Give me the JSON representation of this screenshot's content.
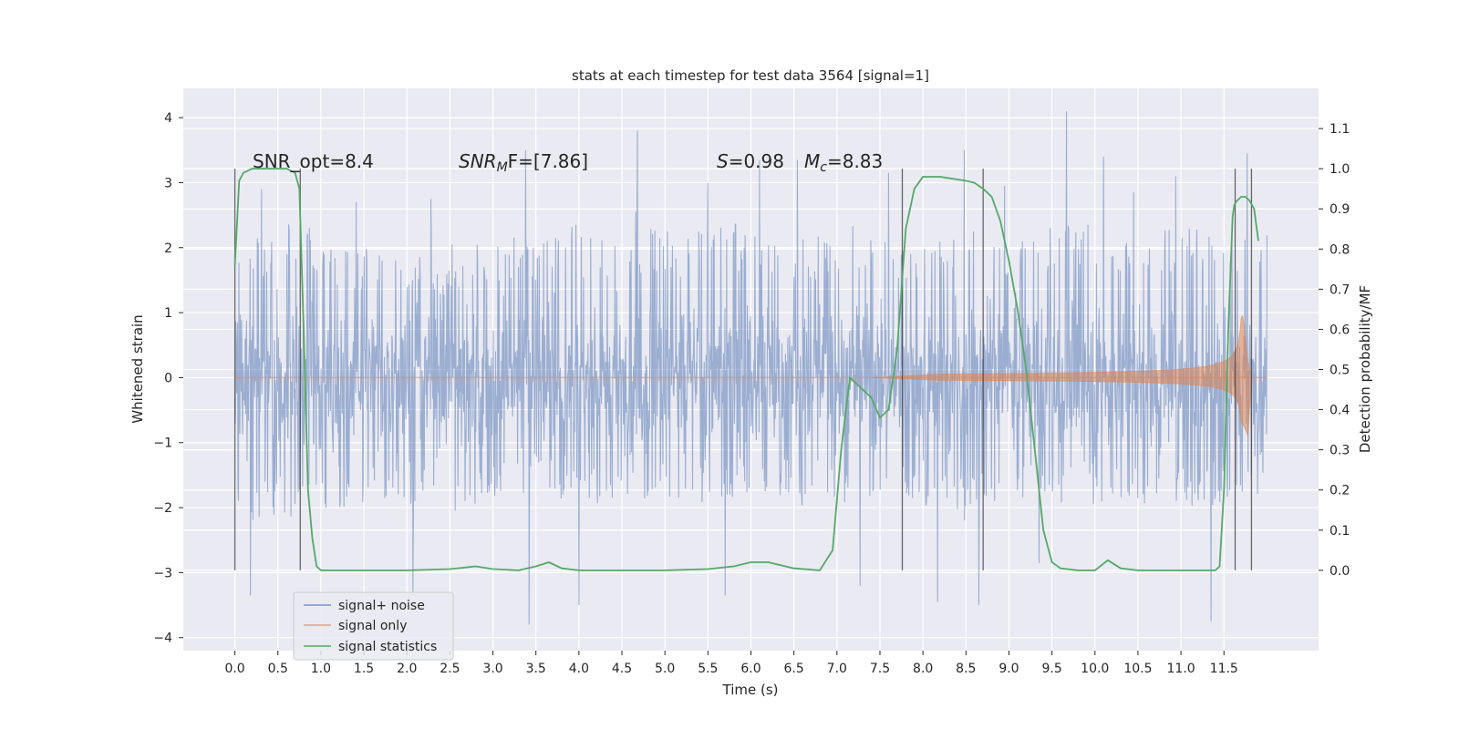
{
  "chart_data": {
    "type": "line",
    "title": "stats at each timestep for test data 3564 [signal=1]",
    "xlabel": "Time (s)",
    "ylabel_left": "Whitened strain",
    "ylabel_right": "Detection probability/MF",
    "xlim": [
      -0.6,
      12.6
    ],
    "ylim_left": [
      -4.2,
      4.45
    ],
    "ylim_right": [
      -0.2,
      1.2
    ],
    "x_ticks": [
      "0.0",
      "0.5",
      "1.0",
      "1.5",
      "2.0",
      "2.5",
      "3.0",
      "3.5",
      "4.0",
      "4.5",
      "5.0",
      "5.5",
      "6.0",
      "6.5",
      "7.0",
      "7.5",
      "8.0",
      "8.5",
      "9.0",
      "9.5",
      "10.0",
      "10.5",
      "11.0",
      "11.5"
    ],
    "y_ticks_left": [
      "4",
      "3",
      "2",
      "1",
      "0",
      "−1",
      "−2",
      "−3",
      "−4"
    ],
    "y_ticks_right": [
      "1.1",
      "1.0",
      "0.9",
      "0.8",
      "0.7",
      "0.6",
      "0.5",
      "0.4",
      "0.3",
      "0.2",
      "0.1",
      "0.0"
    ],
    "grid": true,
    "background": "#eaeaf2",
    "legend_position": "lower-left",
    "annotations": {
      "snr_opt": "SNR_opt=8.4",
      "snr_mf_name": "SNR",
      "snr_mf_sub": "M",
      "snr_mf_rest": "F=[7.86]",
      "s_name": "S",
      "s_rest": "=0.98",
      "mc_name": "M",
      "mc_sub": "c",
      "mc_rest": "=8.83"
    },
    "series": [
      {
        "name": "signal+ noise",
        "color": "#4c72b0",
        "opacity": 0.5,
        "style": "noise-band",
        "x_range": [
          0.0,
          12.0
        ],
        "band_min": [
          -2.1,
          -2.1,
          -2.0,
          -1.9,
          -2.0,
          -2.0,
          -1.8,
          -1.8,
          -2.0,
          -1.9,
          -1.9,
          -1.9,
          -1.8,
          -1.9,
          -1.9,
          -1.9,
          -2.1,
          -1.9,
          -1.8,
          -1.9,
          -1.9,
          -1.9,
          -1.9,
          -1.9
        ],
        "band_max": [
          2.2,
          2.3,
          1.9,
          2.3,
          1.9,
          2.0,
          2.1,
          2.3,
          2.1,
          2.2,
          2.2,
          2.3,
          2.2,
          2.1,
          2.3,
          2.1,
          2.1,
          2.2,
          2.2,
          2.3,
          2.1,
          2.2,
          2.2,
          2.2
        ],
        "spikes": [
          {
            "x": 0.31,
            "y": 2.9
          },
          {
            "x": 0.18,
            "y": -3.35
          },
          {
            "x": 1.41,
            "y": 2.7
          },
          {
            "x": 2.07,
            "y": -3.3
          },
          {
            "x": 2.28,
            "y": 2.75
          },
          {
            "x": 3.38,
            "y": 3.5
          },
          {
            "x": 3.42,
            "y": -3.8
          },
          {
            "x": 4.0,
            "y": -3.5
          },
          {
            "x": 4.68,
            "y": 3.8
          },
          {
            "x": 4.66,
            "y": 2.55
          },
          {
            "x": 5.7,
            "y": -3.35
          },
          {
            "x": 6.1,
            "y": 3.35
          },
          {
            "x": 6.54,
            "y": 3.35
          },
          {
            "x": 7.27,
            "y": -3.2
          },
          {
            "x": 8.17,
            "y": -3.45
          },
          {
            "x": 8.48,
            "y": 3.5
          },
          {
            "x": 8.65,
            "y": -3.5
          },
          {
            "x": 9.35,
            "y": -2.85
          },
          {
            "x": 9.67,
            "y": 4.1
          },
          {
            "x": 10.1,
            "y": 3.4
          },
          {
            "x": 10.94,
            "y": 3.1
          },
          {
            "x": 11.35,
            "y": -3.75
          },
          {
            "x": 11.77,
            "y": 3.45
          },
          {
            "x": 5.5,
            "y": 3.0
          },
          {
            "x": 7.6,
            "y": 3.15
          },
          {
            "x": 8.95,
            "y": 2.95
          },
          {
            "x": 10.45,
            "y": 2.85
          }
        ]
      },
      {
        "name": "signal only",
        "color": "#dd8452",
        "opacity": 0.6,
        "style": "chirp",
        "chirp_start": 7.4,
        "chirp_peak": 11.72,
        "chirp_end": 11.78,
        "peak_amplitude": 1.2
      },
      {
        "name": "signal statistics",
        "color": "#55a868",
        "axis": "right",
        "x": [
          0.0,
          0.05,
          0.1,
          0.2,
          0.3,
          0.4,
          0.5,
          0.6,
          0.7,
          0.75,
          0.8,
          0.85,
          0.9,
          0.95,
          1.0,
          1.1,
          1.5,
          2.0,
          2.5,
          2.8,
          3.0,
          3.3,
          3.5,
          3.65,
          3.8,
          4.0,
          4.5,
          5.0,
          5.5,
          5.8,
          6.0,
          6.2,
          6.5,
          6.8,
          6.95,
          7.05,
          7.15,
          7.25,
          7.4,
          7.5,
          7.6,
          7.7,
          7.75,
          7.8,
          7.9,
          8.0,
          8.2,
          8.5,
          8.6,
          8.7,
          8.8,
          8.9,
          9.0,
          9.1,
          9.2,
          9.3,
          9.4,
          9.5,
          9.6,
          9.8,
          10.0,
          10.15,
          10.3,
          10.5,
          11.0,
          11.4,
          11.45,
          11.5,
          11.55,
          11.6,
          11.62,
          11.65,
          11.7,
          11.75,
          11.8,
          11.85,
          11.9
        ],
        "y": [
          0.76,
          0.97,
          0.99,
          1.0,
          1.0,
          1.0,
          1.0,
          1.0,
          0.99,
          0.95,
          0.6,
          0.2,
          0.08,
          0.01,
          0.0,
          0.0,
          0.0,
          0.0,
          0.003,
          0.01,
          0.003,
          0.0,
          0.01,
          0.02,
          0.005,
          0.0,
          0.0,
          0.0,
          0.003,
          0.01,
          0.02,
          0.02,
          0.005,
          0.0,
          0.05,
          0.3,
          0.48,
          0.46,
          0.43,
          0.38,
          0.4,
          0.55,
          0.7,
          0.85,
          0.95,
          0.98,
          0.98,
          0.97,
          0.965,
          0.95,
          0.93,
          0.87,
          0.77,
          0.65,
          0.5,
          0.3,
          0.1,
          0.02,
          0.005,
          0.0,
          0.0,
          0.025,
          0.005,
          0.0,
          0.0,
          0.0,
          0.01,
          0.2,
          0.6,
          0.88,
          0.91,
          0.92,
          0.93,
          0.93,
          0.92,
          0.9,
          0.82
        ]
      }
    ],
    "vertical_lines_x": [
      0.0,
      0.76,
      7.76,
      8.7,
      11.63,
      11.82
    ]
  }
}
